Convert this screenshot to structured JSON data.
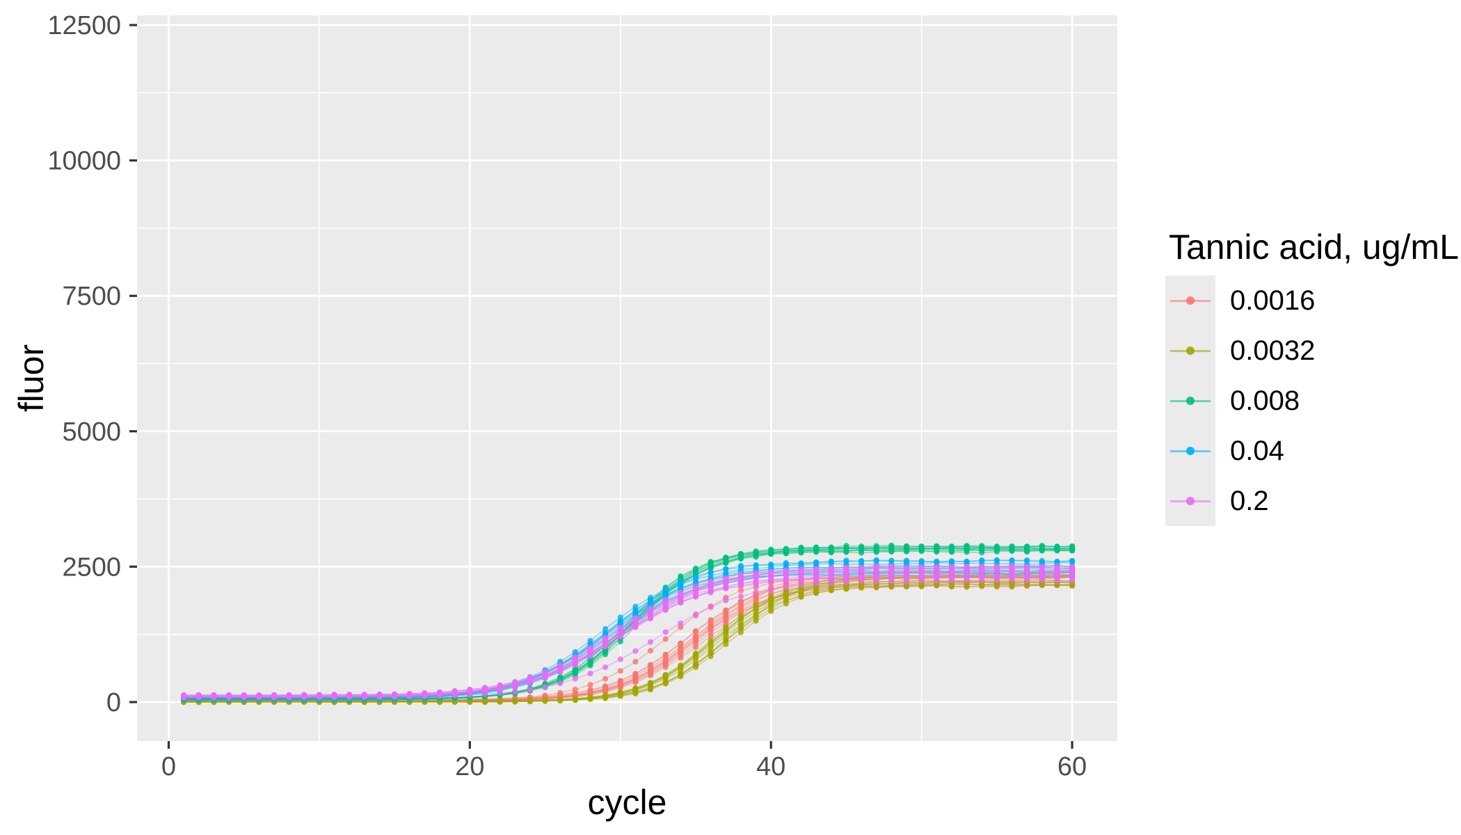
{
  "figure": {
    "background": "#FFFFFF",
    "panel_background": "#EBEBEB",
    "grid_color": "#FFFFFF",
    "axis_tick_color": "#333333",
    "tick_label_color": "#4D4D4D",
    "title_color": "#000000"
  },
  "chart_data": {
    "type": "line",
    "title": "",
    "xlabel": "cycle",
    "ylabel": "fluor",
    "legend_title": "Tannic acid, ug/mL",
    "legend_position": "right",
    "grid": true,
    "points": true,
    "x_ticks": [
      0,
      20,
      40,
      60
    ],
    "x_minor_ticks": [
      10,
      30,
      50
    ],
    "y_ticks": [
      0,
      2500,
      5000,
      7500,
      10000,
      12500
    ],
    "y_minor_ticks": [
      1250,
      3750,
      6250,
      8750,
      11250
    ],
    "xlim": [
      -2.1,
      63.0
    ],
    "ylim": [
      -720,
      12680
    ],
    "x_start": 1,
    "x_end": 60,
    "x_step": 1,
    "x_sample": [
      1,
      5,
      10,
      15,
      20,
      23,
      26,
      28,
      30,
      32,
      34,
      36,
      38,
      40,
      43,
      46,
      50,
      55,
      60
    ],
    "series": [
      {
        "label": "0.0016",
        "color": "#F8766D",
        "baseline": 30,
        "plateau": 2300,
        "midpoint": 34.8,
        "slope": 2.6,
        "replicates": 10,
        "plateau_spread": 0.07,
        "midpoint_spread": 0.5,
        "baseline_spread": 18,
        "sample_values": [
          30,
          30,
          30,
          31,
          38,
          54,
          105,
          184,
          339,
          607,
          990,
          1422,
          1787,
          2030,
          2207,
          2270,
          2293,
          2299,
          2300
        ],
        "outliers": [
          {
            "midpoint_shift": -1.7,
            "plateau_mult": 1.02,
            "baseline_shift": 0
          }
        ]
      },
      {
        "label": "0.0032",
        "color": "#A3A500",
        "baseline": 10,
        "plateau": 2280,
        "midpoint": 36.6,
        "slope": 2.4,
        "replicates": 10,
        "plateau_spread": 0.075,
        "midpoint_spread": 0.55,
        "baseline_spread": 14,
        "sample_values": [
          10,
          10,
          10,
          10,
          12,
          18,
          37,
          72,
          146,
          300,
          584,
          1004,
          1467,
          1837,
          2132,
          2235,
          2271,
          2278,
          2280
        ],
        "outliers": []
      },
      {
        "label": "0.008",
        "color": "#00BF7D",
        "baseline": 45,
        "plateau": 2820,
        "midpoint": 30.8,
        "slope": 2.5,
        "replicates": 10,
        "plateau_spread": 0.022,
        "midpoint_spread": 0.45,
        "baseline_spread": 16,
        "sample_values": [
          45,
          45,
          45,
          50,
          81,
          162,
          400,
          728,
          1213,
          1760,
          2215,
          2512,
          2673,
          2751,
          2798,
          2816,
          2819,
          2820,
          2820
        ],
        "outliers": []
      },
      {
        "label": "0.04",
        "color": "#00B0F6",
        "baseline": 70,
        "plateau": 2480,
        "midpoint": 29.3,
        "slope": 2.9,
        "replicates": 10,
        "plateau_spread": 0.075,
        "midpoint_spread": 0.5,
        "baseline_spread": 18,
        "sample_values": [
          70,
          70,
          73,
          87,
          163,
          316,
          653,
          1010,
          1420,
          1798,
          2082,
          2263,
          2367,
          2422,
          2459,
          2472,
          2478,
          2480,
          2480
        ],
        "outliers": []
      },
      {
        "label": "0.2",
        "color": "#E76BF3",
        "baseline": 110,
        "plateau": 2400,
        "midpoint": 30.0,
        "slope": 3.1,
        "replicates": 10,
        "plateau_spread": 0.05,
        "midpoint_spread": 0.45,
        "baseline_spread": 25,
        "sample_values": [
          110,
          110,
          114,
          128,
          197,
          326,
          604,
          898,
          1255,
          1612,
          1905,
          2111,
          2239,
          2313,
          2365,
          2387,
          2397,
          2400,
          2400
        ],
        "outliers": [
          {
            "midpoint_shift": 2.3,
            "plateau_mult": 0.94,
            "baseline_shift": -15
          }
        ]
      }
    ]
  }
}
